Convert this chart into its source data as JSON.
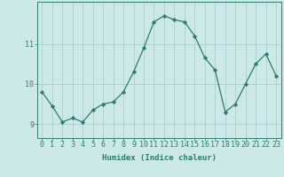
{
  "x": [
    0,
    1,
    2,
    3,
    4,
    5,
    6,
    7,
    8,
    9,
    10,
    11,
    12,
    13,
    14,
    15,
    16,
    17,
    18,
    19,
    20,
    21,
    22,
    23
  ],
  "y": [
    9.8,
    9.45,
    9.05,
    9.15,
    9.05,
    9.35,
    9.5,
    9.55,
    9.8,
    10.3,
    10.9,
    11.55,
    11.7,
    11.6,
    11.55,
    11.2,
    10.65,
    10.35,
    9.3,
    9.5,
    10.0,
    10.5,
    10.75,
    10.2
  ],
  "line_color": "#2e7d6e",
  "marker": "D",
  "marker_size": 2.2,
  "bg_color": "#cce8e8",
  "grid_color": "#aacfcf",
  "xlabel": "Humidex (Indice chaleur)",
  "ylim": [
    8.65,
    12.05
  ],
  "xlim": [
    -0.5,
    23.5
  ],
  "yticks": [
    9,
    10,
    11
  ],
  "xticks": [
    0,
    1,
    2,
    3,
    4,
    5,
    6,
    7,
    8,
    9,
    10,
    11,
    12,
    13,
    14,
    15,
    16,
    17,
    18,
    19,
    20,
    21,
    22,
    23
  ],
  "tick_color": "#2e7d6e",
  "axis_color": "#2e7d6e",
  "label_fontsize": 6.5,
  "tick_fontsize": 6.0
}
